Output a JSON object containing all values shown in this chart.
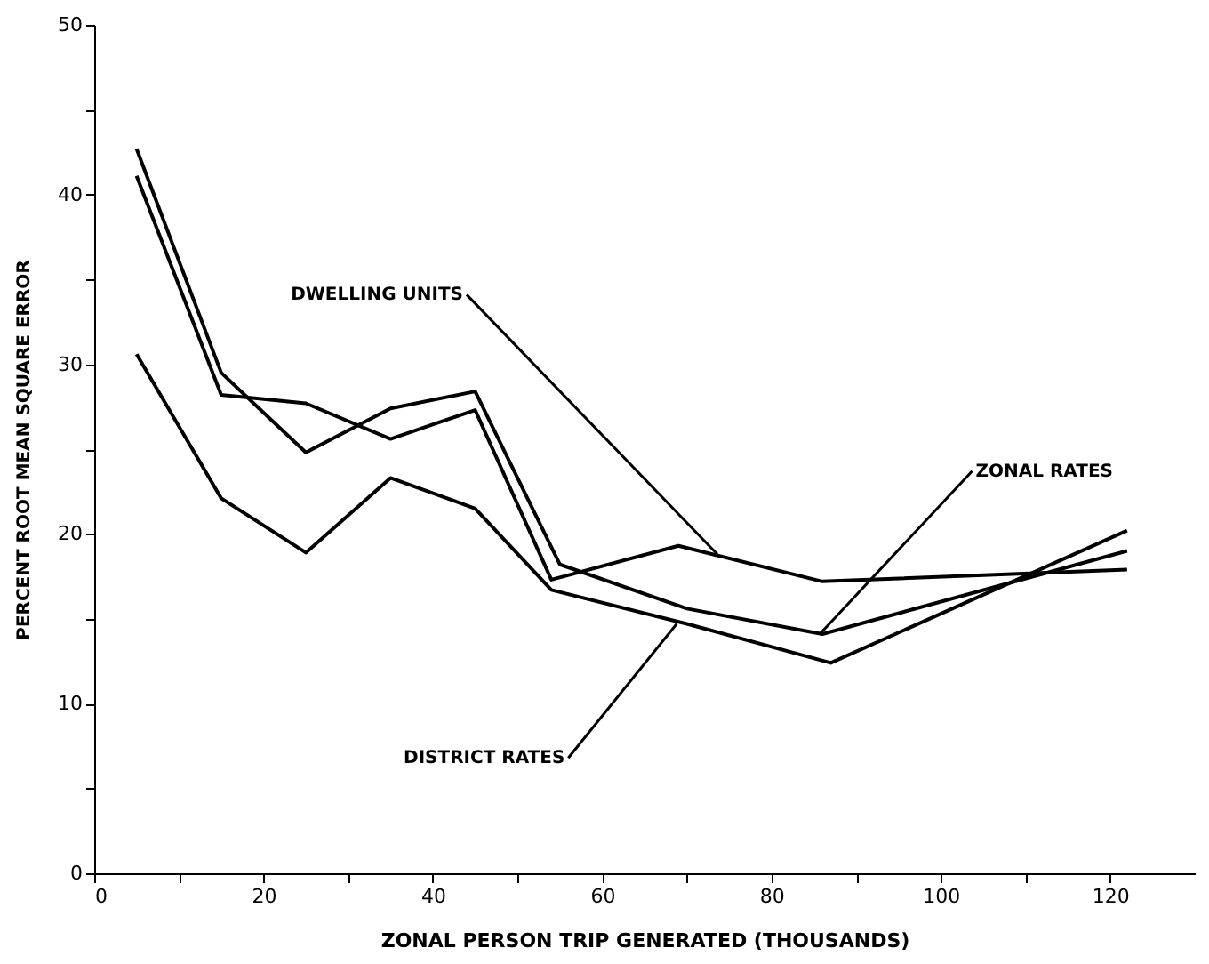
{
  "chart_data": {
    "type": "line",
    "xlabel": "ZONAL PERSON TRIP GENERATED (THOUSANDS)",
    "ylabel": "PERCENT ROOT MEAN SQUARE ERROR",
    "series": [
      {
        "color": "#000000",
        "x": [
          5,
          15,
          25,
          35,
          45,
          54,
          69,
          86,
          122
        ],
        "values": [
          41.1,
          28.2,
          27.7,
          25.6,
          27.3,
          17.3,
          19.3,
          17.2,
          17.9
        ]
      },
      {
        "color": "#000000",
        "x": [
          5,
          15,
          25,
          35,
          45,
          55,
          70,
          86,
          122
        ],
        "values": [
          42.7,
          29.5,
          24.8,
          27.4,
          28.4,
          18.2,
          15.6,
          14.1,
          19.0
        ]
      },
      {
        "color": "#000000",
        "x": [
          5,
          15,
          25,
          35,
          45,
          54,
          70,
          87,
          122
        ],
        "values": [
          30.6,
          22.1,
          18.9,
          23.3,
          21.5,
          16.7,
          14.7,
          12.4,
          20.2
        ]
      }
    ],
    "annotations": [
      {
        "text": "DWELLING UNITS",
        "x": 73.6,
        "y": 18.8
      },
      {
        "text": "ZONAL RATES",
        "x": 85.7,
        "y": 14.1
      },
      {
        "text": "DISTRICT RATES",
        "x": 68.8,
        "y": 14.7
      }
    ],
    "xlim": [
      0,
      130
    ],
    "ylim": [
      0,
      50
    ],
    "xticks": [
      0,
      {
        "value": 10,
        "label": null
      },
      20,
      {
        "value": 30,
        "label": null
      },
      40,
      {
        "value": 50,
        "label": null
      },
      60,
      {
        "value": 70,
        "label": null
      },
      80,
      {
        "value": 90,
        "label": null
      },
      100,
      {
        "value": 110,
        "label": null
      },
      120
    ],
    "yticks": [
      0,
      {
        "value": 5,
        "label": null
      },
      10,
      {
        "value": 15,
        "label": null
      },
      20,
      {
        "value": 25,
        "label": null
      },
      30,
      {
        "value": 35,
        "label": null
      },
      40,
      {
        "value": 45,
        "label": null
      },
      50
    ],
    "grid": false,
    "marker": "none",
    "line_style": "solid"
  }
}
